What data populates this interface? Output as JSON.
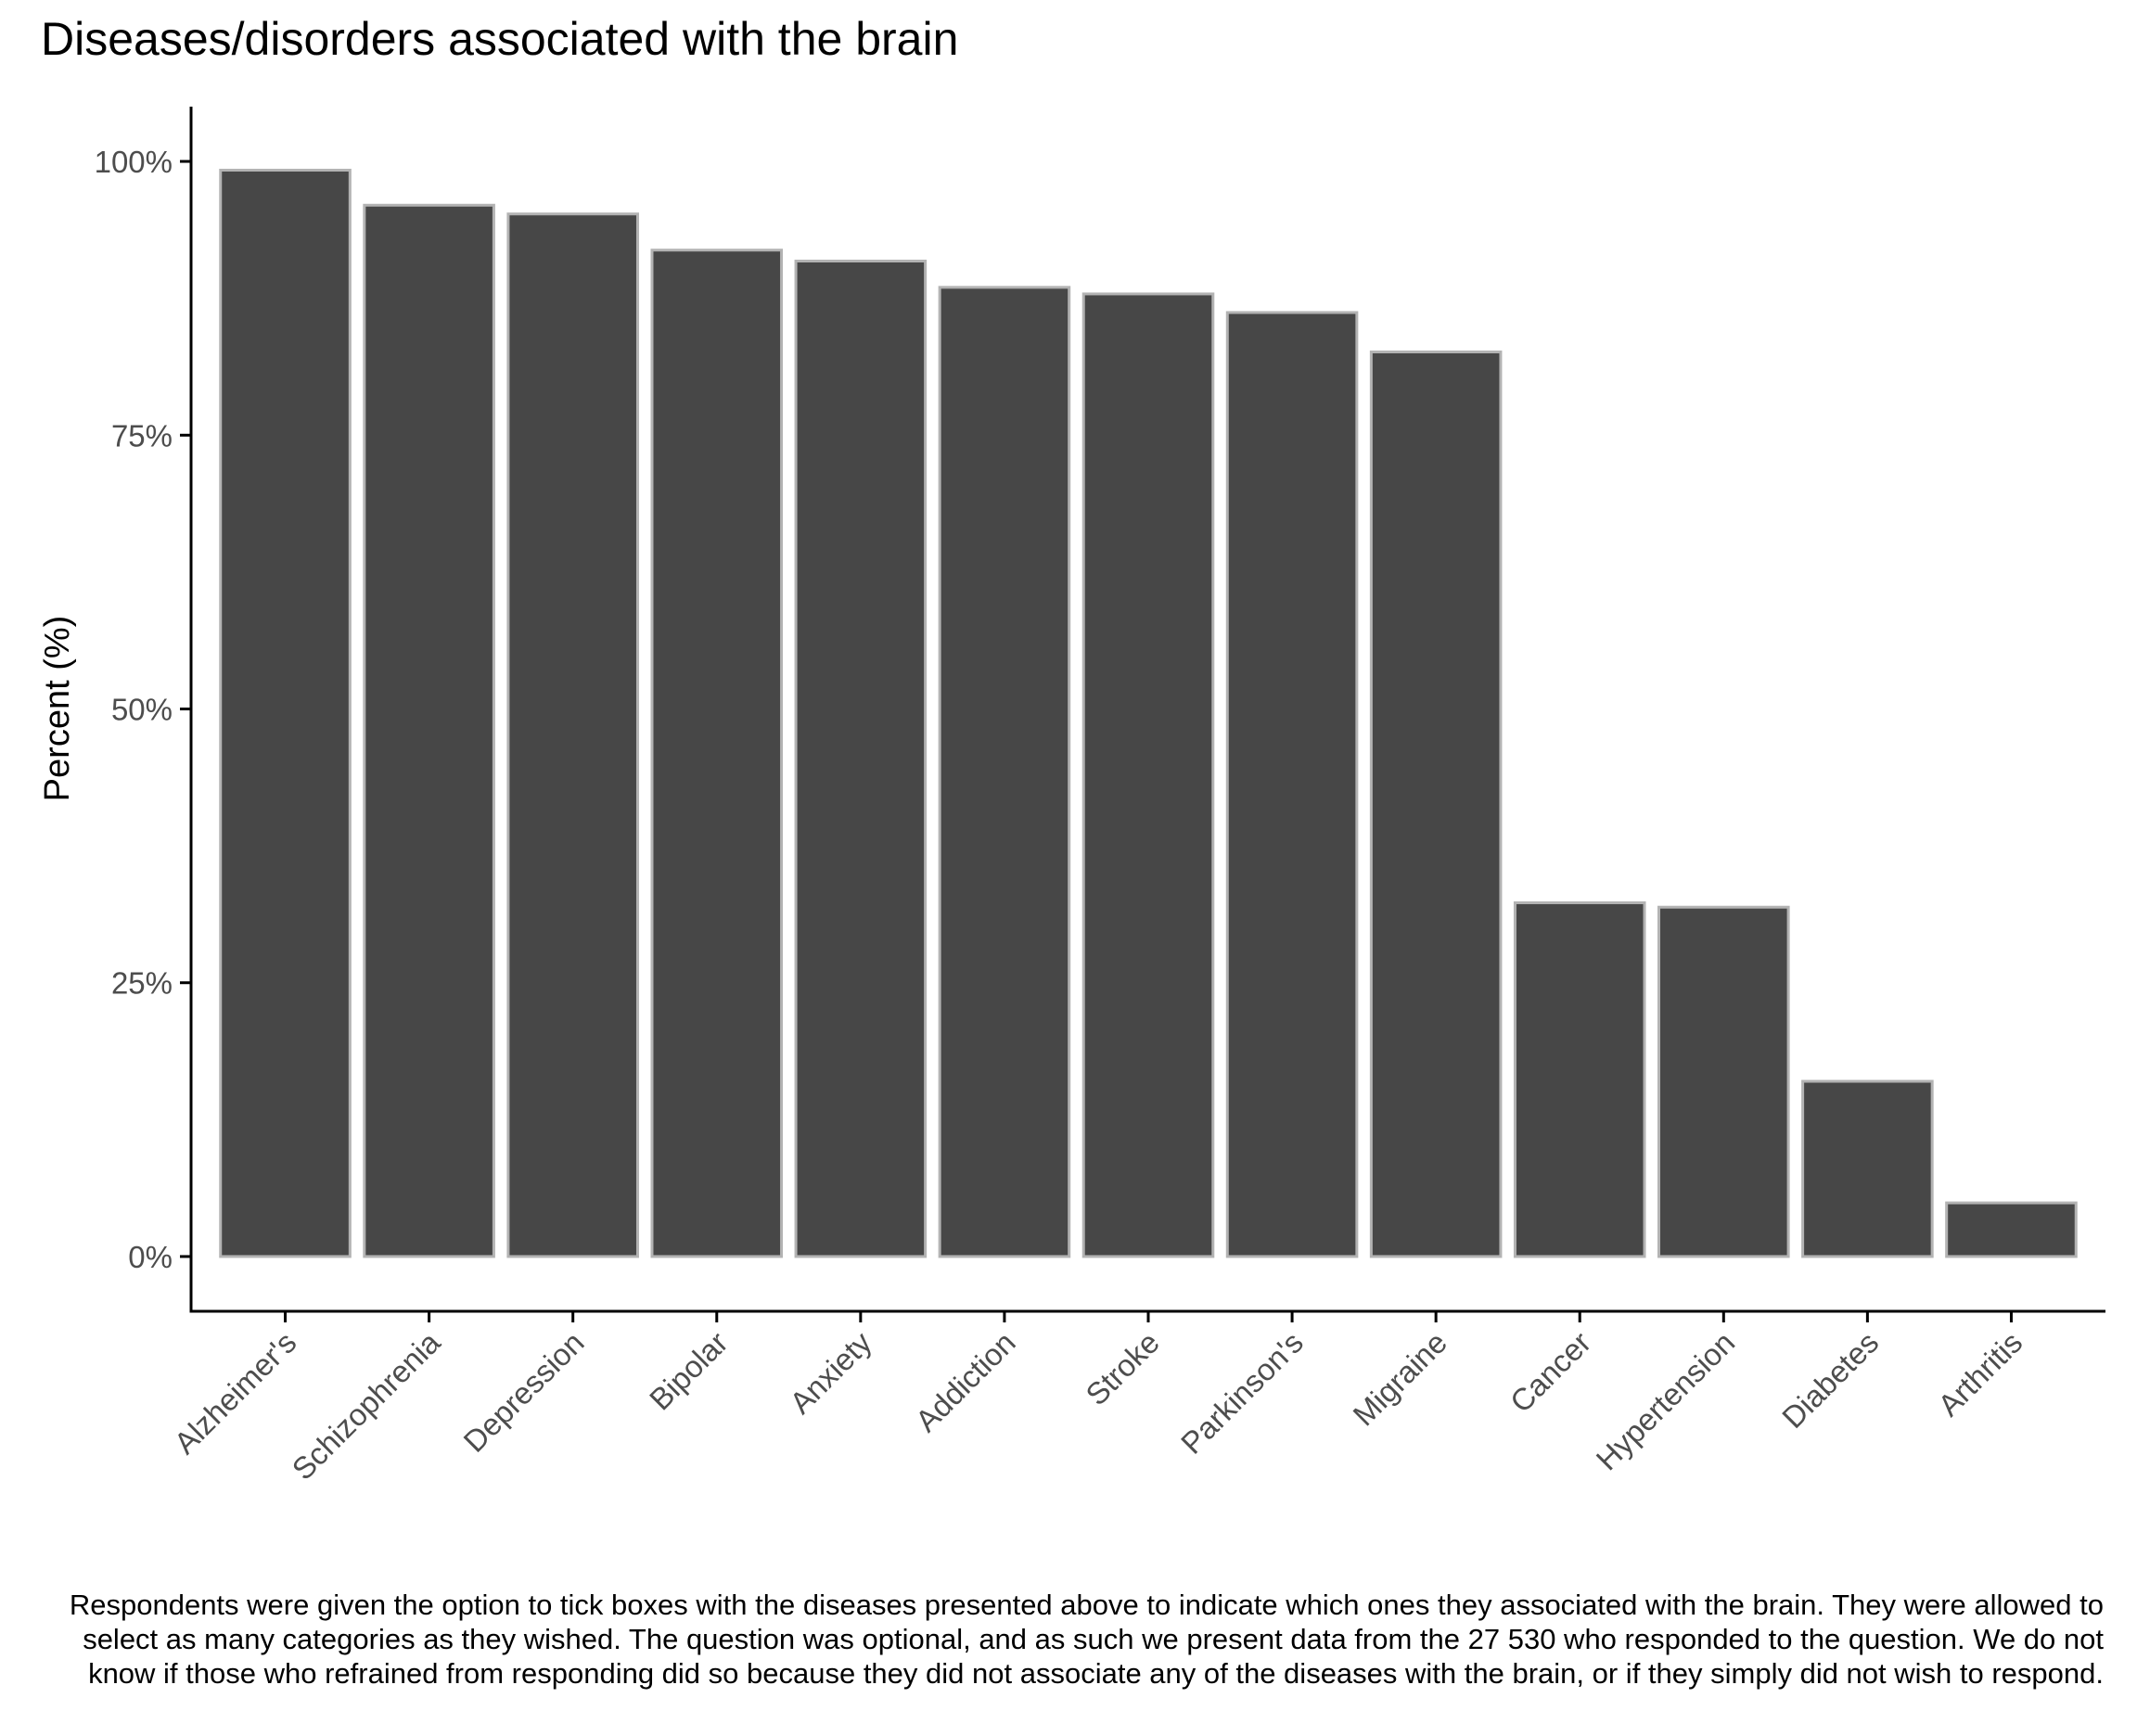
{
  "chart_data": {
    "type": "bar",
    "title": "Diseases/disorders associated with the brain",
    "xlabel": "",
    "ylabel": "Percent (%)",
    "categories": [
      "Alzheimer's",
      "Schizophrenia",
      "Depression",
      "Bipolar",
      "Anxiety",
      "Addiction",
      "Stroke",
      "Parkinson's",
      "Migraine",
      "Cancer",
      "Hypertension",
      "Diabetes",
      "Arthritis"
    ],
    "values": [
      99.2,
      96.0,
      95.2,
      91.9,
      90.9,
      88.5,
      87.9,
      86.2,
      82.6,
      32.3,
      31.9,
      16.0,
      4.9
    ],
    "value_unit": "%",
    "ylim": [
      -5,
      105
    ],
    "yticks": [
      0,
      25,
      50,
      75,
      100
    ],
    "ytick_labels": [
      "0%",
      "25%",
      "50%",
      "75%",
      "100%"
    ],
    "grid": false,
    "legend": "none",
    "bar_fill": "#474747",
    "bar_outline": "#b3b3b3",
    "axis_color": "#000000",
    "tick_label_color": "#4d4d4d",
    "caption": "Respondents were given the option to tick boxes with the diseases presented above to indicate which ones they associated with the brain. They were allowed to select as many categories as they wished. The question was optional, and as such we present data from the 27 530 who responded to the question. We do not know if those who refrained from responding did so because they did not associate any of the diseases with the brain, or if they simply did not wish to respond."
  }
}
